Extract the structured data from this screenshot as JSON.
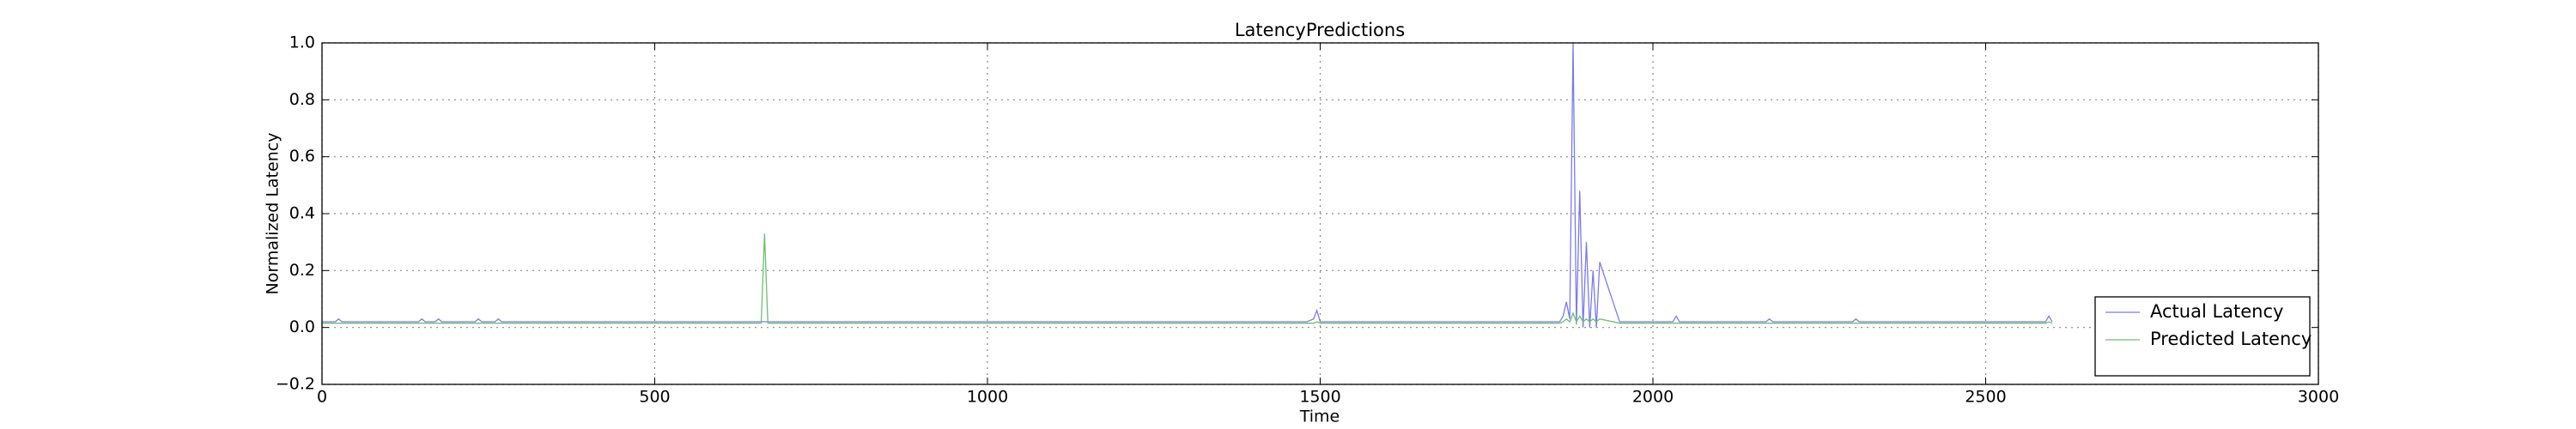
{
  "chart_data": {
    "type": "line",
    "title": "LatencyPredictions",
    "x_label": "Time",
    "y_label": "Normalized Latency",
    "x": [
      0,
      20,
      25,
      30,
      145,
      150,
      155,
      170,
      175,
      180,
      230,
      235,
      240,
      260,
      265,
      270,
      500,
      660,
      665,
      670,
      1000,
      1480,
      1490,
      1495,
      1500,
      1505,
      1860,
      1865,
      1870,
      1875,
      1880,
      1885,
      1890,
      1895,
      1900,
      1905,
      1910,
      1915,
      1920,
      1950,
      2030,
      2035,
      2040,
      2170,
      2175,
      2180,
      2300,
      2305,
      2310,
      2580,
      2590,
      2595,
      2600
    ],
    "series": [
      {
        "name": "Actual Latency",
        "color": "#7b7bee",
        "values": [
          0.02,
          0.02,
          0.03,
          0.02,
          0.02,
          0.03,
          0.02,
          0.02,
          0.03,
          0.02,
          0.02,
          0.03,
          0.02,
          0.02,
          0.03,
          0.02,
          0.02,
          0.02,
          0.02,
          0.02,
          0.02,
          0.02,
          0.03,
          0.06,
          0.02,
          0.02,
          0.02,
          0.04,
          0.09,
          0.03,
          1.0,
          0.01,
          0.48,
          0.0,
          0.3,
          0.0,
          0.2,
          0.0,
          0.23,
          0.02,
          0.02,
          0.04,
          0.02,
          0.02,
          0.03,
          0.02,
          0.02,
          0.03,
          0.02,
          0.02,
          0.02,
          0.04,
          0.02
        ]
      },
      {
        "name": "Predicted Latency",
        "color": "#6cc06c",
        "values": [
          0.015,
          0.015,
          0.015,
          0.015,
          0.015,
          0.015,
          0.015,
          0.015,
          0.015,
          0.015,
          0.015,
          0.015,
          0.015,
          0.015,
          0.015,
          0.015,
          0.015,
          0.015,
          0.33,
          0.015,
          0.015,
          0.015,
          0.015,
          0.02,
          0.015,
          0.015,
          0.015,
          0.02,
          0.03,
          0.02,
          0.05,
          0.02,
          0.04,
          0.02,
          0.03,
          0.02,
          0.03,
          0.02,
          0.03,
          0.015,
          0.015,
          0.015,
          0.015,
          0.015,
          0.015,
          0.015,
          0.015,
          0.015,
          0.015,
          0.015,
          0.015,
          0.02,
          0.015
        ]
      }
    ],
    "xlim": [
      0,
      3000
    ],
    "xticks": [
      0,
      500,
      1000,
      1500,
      2000,
      2500,
      3000
    ],
    "ylim": [
      -0.2,
      1.0
    ],
    "yticks": [
      {
        "value": -0.2,
        "label": "−0.2"
      },
      {
        "value": 0,
        "label": "0.0"
      },
      0.2,
      0.4,
      0.6,
      0.8,
      {
        "value": 1.0,
        "label": "1.0"
      }
    ],
    "grid": true,
    "legend": "lower right"
  }
}
